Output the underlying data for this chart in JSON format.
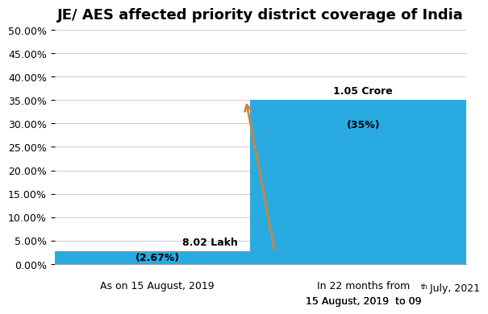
{
  "title": "JE/ AES affected priority district coverage of India",
  "values": [
    2.67,
    35.0
  ],
  "bar_color": "#29ABE2",
  "bar_width": 0.55,
  "x_positions": [
    0.25,
    0.75
  ],
  "xlim": [
    0,
    1
  ],
  "ylim_max": 50,
  "ytick_step": 5,
  "yticklabels": [
    "0.00%",
    "5.00%",
    "10.00%",
    "15.00%",
    "20.00%",
    "25.00%",
    "30.00%",
    "35.00%",
    "40.00%",
    "45.00%",
    "50.00%"
  ],
  "bar1_top_label": "8.02 Lakh",
  "bar1_pct_label": "(2.67%)",
  "bar2_top_label": "1.05 Crore",
  "bar2_pct_label": "(35%)",
  "xlabel1": "As on 15 August, 2019",
  "xlabel2_line1": "In 22 months from",
  "xlabel2_line2_pre": "15 August, 2019  to 09",
  "xlabel2_line2_sup": "th",
  "xlabel2_line2_post": " July, 2021",
  "arrow_color": "#CD853F",
  "title_fontsize": 13,
  "label_fontsize": 9,
  "tick_fontsize": 9,
  "bg_color": "#FFFFFF",
  "grid_color": "#CCCCCC"
}
